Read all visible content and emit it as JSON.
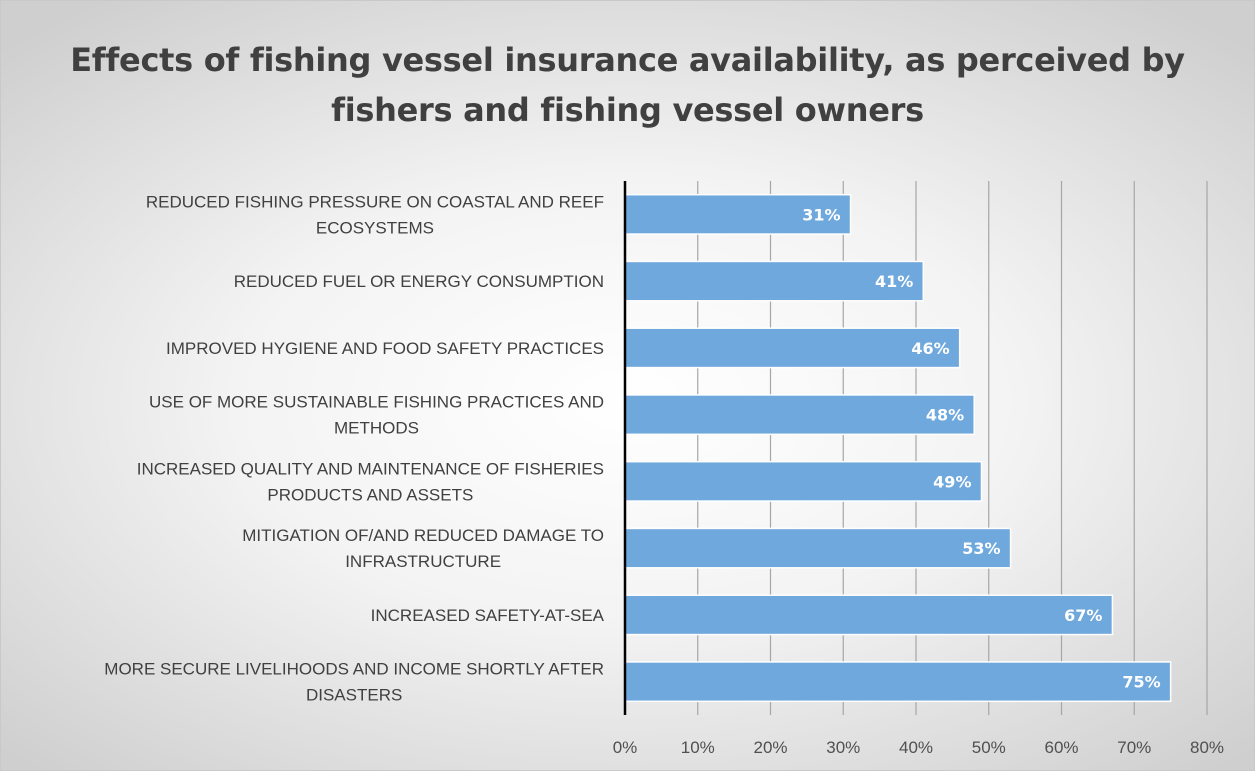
{
  "chart_data": {
    "type": "bar",
    "orientation": "horizontal",
    "title": "Effects of fishing vessel insurance availability, as perceived by fishers and fishing vessel owners",
    "categories": [
      [
        "REDUCED FISHING PRESSURE ON COASTAL AND REEF",
        "ECOSYSTEMS"
      ],
      [
        "REDUCED FUEL OR ENERGY  CONSUMPTION"
      ],
      [
        "IMPROVED HYGIENE AND FOOD SAFETY PRACTICES"
      ],
      [
        "USE OF MORE SUSTAINABLE FISHING PRACTICES AND",
        "METHODS"
      ],
      [
        "INCREASED QUALITY AND MAINTENANCE OF FISHERIES",
        "PRODUCTS AND ASSETS"
      ],
      [
        "MITIGATION OF/AND REDUCED  DAMAGE TO",
        "INFRASTRUCTURE"
      ],
      [
        "INCREASED SAFETY-AT-SEA"
      ],
      [
        "MORE SECURE LIVELIHOODS AND INCOME SHORTLY AFTER",
        "DISASTERS"
      ]
    ],
    "values": [
      31,
      41,
      46,
      48,
      49,
      53,
      67,
      75
    ],
    "data_labels": [
      "31%",
      "41%",
      "46%",
      "48%",
      "49%",
      "53%",
      "67%",
      "75%"
    ],
    "xlim": [
      0,
      80
    ],
    "xticks": [
      0,
      10,
      20,
      30,
      40,
      50,
      60,
      70,
      80
    ],
    "xtick_labels": [
      "0%",
      "10%",
      "20%",
      "30%",
      "40%",
      "50%",
      "60%",
      "70%",
      "80%"
    ],
    "xlabel": "",
    "ylabel": "",
    "grid": "vertical",
    "legend": "none",
    "colors": {
      "bar": "#6fa8dc",
      "bar_edge": "#ffffff",
      "grid": "#a6a6a6",
      "axis": "#000000"
    }
  }
}
